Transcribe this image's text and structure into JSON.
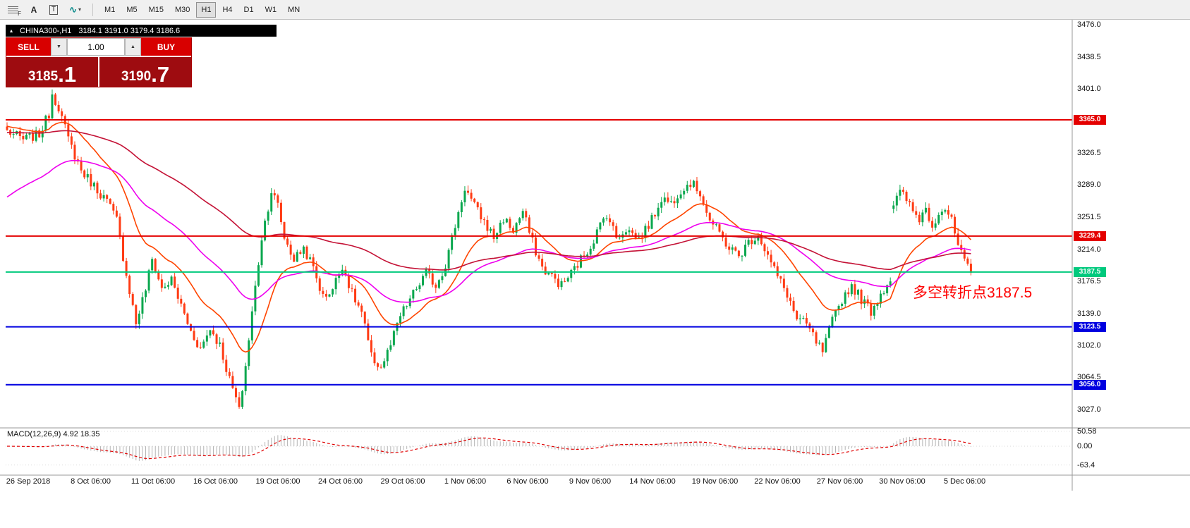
{
  "toolbar": {
    "tools": [
      {
        "name": "fibonacci-tool",
        "glyph": "F"
      },
      {
        "name": "text-tool",
        "glyph": "A"
      },
      {
        "name": "text-label-tool",
        "glyph": "T"
      },
      {
        "name": "arrows-tool",
        "glyph": "∿"
      }
    ],
    "dropdown_icon": "▾",
    "timeframes": [
      "M1",
      "M5",
      "M15",
      "M30",
      "H1",
      "H4",
      "D1",
      "W1",
      "MN"
    ],
    "active_timeframe": "H1"
  },
  "chart_header": {
    "collapse_icon": "▴",
    "symbol": "CHINA300-,H1",
    "ohlc": "3184.1 3191.0 3179.4 3186.6"
  },
  "trade_panel": {
    "sell_label": "SELL",
    "buy_label": "BUY",
    "volume": "1.00",
    "spinner_down": "▼",
    "spinner_up": "▲",
    "sell_price": {
      "main": "3185",
      "pips": ".1"
    },
    "buy_price": {
      "main": "3190",
      "pips": ".7"
    }
  },
  "annotation": {
    "text": "多空转折点3187.5",
    "color": "#FF0000"
  },
  "indicator": {
    "label": "MACD(12,26,9) 4.92 18.35",
    "axis": [
      "50.58",
      "0.00",
      "-63.4"
    ]
  },
  "price_axis": {
    "ticks": [
      "3476.0",
      "3438.5",
      "3401.0",
      "3326.5",
      "3289.0",
      "3251.5",
      "3214.0",
      "3176.5",
      "3139.0",
      "3102.0",
      "3064.5",
      "3027.0"
    ],
    "badges": [
      {
        "value": "3365.0",
        "color": "#E40000"
      },
      {
        "value": "3229.4",
        "color": "#E40000"
      },
      {
        "value": "3187.5",
        "color": "#00C97D"
      },
      {
        "value": "3123.5",
        "color": "#0000E0"
      },
      {
        "value": "3056.0",
        "color": "#0000E0"
      }
    ]
  },
  "time_axis": [
    "26 Sep 2018",
    "8 Oct 06:00",
    "11 Oct 06:00",
    "16 Oct 06:00",
    "19 Oct 06:00",
    "24 Oct 06:00",
    "29 Oct 06:00",
    "1 Nov 06:00",
    "6 Nov 06:00",
    "9 Nov 06:00",
    "14 Nov 06:00",
    "19 Nov 06:00",
    "22 Nov 06:00",
    "27 Nov 06:00",
    "30 Nov 06:00",
    "5 Dec 06:00"
  ],
  "chart_data": {
    "type": "candlestick",
    "symbol": "CHINA300-",
    "timeframe": "H1",
    "current_close": 3186.6,
    "ylim": [
      3006,
      3482
    ],
    "bars": 300,
    "up_color": "#0AA74E",
    "down_color": "#FF3B14",
    "close_anchors": [
      [
        0,
        3352
      ],
      [
        5,
        3342
      ],
      [
        10,
        3348
      ],
      [
        13,
        3372
      ],
      [
        14,
        3396
      ],
      [
        16,
        3380
      ],
      [
        19,
        3342
      ],
      [
        23,
        3306
      ],
      [
        27,
        3288
      ],
      [
        31,
        3270
      ],
      [
        34,
        3248
      ],
      [
        37,
        3185
      ],
      [
        40,
        3128
      ],
      [
        43,
        3168
      ],
      [
        45,
        3202
      ],
      [
        48,
        3168
      ],
      [
        51,
        3178
      ],
      [
        54,
        3148
      ],
      [
        57,
        3118
      ],
      [
        60,
        3098
      ],
      [
        63,
        3122
      ],
      [
        66,
        3102
      ],
      [
        69,
        3062
      ],
      [
        71,
        3040
      ],
      [
        72,
        3025
      ],
      [
        74,
        3078
      ],
      [
        76,
        3140
      ],
      [
        79,
        3228
      ],
      [
        82,
        3282
      ],
      [
        84,
        3265
      ],
      [
        86,
        3228
      ],
      [
        89,
        3202
      ],
      [
        92,
        3216
      ],
      [
        95,
        3192
      ],
      [
        98,
        3158
      ],
      [
        101,
        3168
      ],
      [
        104,
        3196
      ],
      [
        107,
        3162
      ],
      [
        110,
        3140
      ],
      [
        113,
        3088
      ],
      [
        116,
        3076
      ],
      [
        119,
        3102
      ],
      [
        122,
        3136
      ],
      [
        126,
        3162
      ],
      [
        130,
        3186
      ],
      [
        133,
        3172
      ],
      [
        136,
        3196
      ],
      [
        139,
        3242
      ],
      [
        142,
        3286
      ],
      [
        145,
        3264
      ],
      [
        148,
        3246
      ],
      [
        151,
        3228
      ],
      [
        154,
        3250
      ],
      [
        157,
        3236
      ],
      [
        160,
        3258
      ],
      [
        163,
        3222
      ],
      [
        166,
        3192
      ],
      [
        169,
        3182
      ],
      [
        172,
        3172
      ],
      [
        175,
        3186
      ],
      [
        178,
        3202
      ],
      [
        181,
        3218
      ],
      [
        184,
        3242
      ],
      [
        186,
        3256
      ],
      [
        189,
        3228
      ],
      [
        192,
        3238
      ],
      [
        196,
        3226
      ],
      [
        200,
        3248
      ],
      [
        203,
        3274
      ],
      [
        206,
        3268
      ],
      [
        209,
        3284
      ],
      [
        212,
        3292
      ],
      [
        215,
        3280
      ],
      [
        218,
        3248
      ],
      [
        221,
        3232
      ],
      [
        224,
        3216
      ],
      [
        227,
        3206
      ],
      [
        230,
        3222
      ],
      [
        233,
        3232
      ],
      [
        236,
        3206
      ],
      [
        239,
        3182
      ],
      [
        242,
        3162
      ],
      [
        245,
        3132
      ],
      [
        248,
        3126
      ],
      [
        251,
        3106
      ],
      [
        253,
        3094
      ],
      [
        256,
        3130
      ],
      [
        259,
        3156
      ],
      [
        262,
        3172
      ],
      [
        265,
        3156
      ],
      [
        268,
        3142
      ],
      [
        271,
        3162
      ],
      [
        274,
        3180
      ],
      [
        275,
        3266
      ],
      [
        277,
        3280
      ],
      [
        279,
        3272
      ],
      [
        281,
        3258
      ],
      [
        283,
        3250
      ],
      [
        285,
        3262
      ],
      [
        287,
        3242
      ],
      [
        289,
        3258
      ],
      [
        291,
        3262
      ],
      [
        293,
        3246
      ],
      [
        295,
        3218
      ],
      [
        297,
        3198
      ],
      [
        299,
        3186
      ]
    ],
    "hlines": [
      {
        "price": 3365.0,
        "color": "#E40000"
      },
      {
        "price": 3229.4,
        "color": "#E40000"
      },
      {
        "price": 3187.5,
        "color": "#00C97D"
      },
      {
        "price": 3123.5,
        "color": "#0000E0"
      },
      {
        "price": 3056.0,
        "color": "#0000E0"
      }
    ],
    "mas": [
      {
        "period": 21,
        "seed": 3358,
        "color": "#FF4500"
      },
      {
        "period": 55,
        "seed": 3272,
        "color": "#EE00EE"
      },
      {
        "period": 120,
        "seed": 3350,
        "color": "#C41236"
      }
    ],
    "macd": {
      "fast": 12,
      "slow": 26,
      "signal": 9,
      "histogram_color": "#B4B4B4",
      "signal_color": "#E00000"
    }
  }
}
